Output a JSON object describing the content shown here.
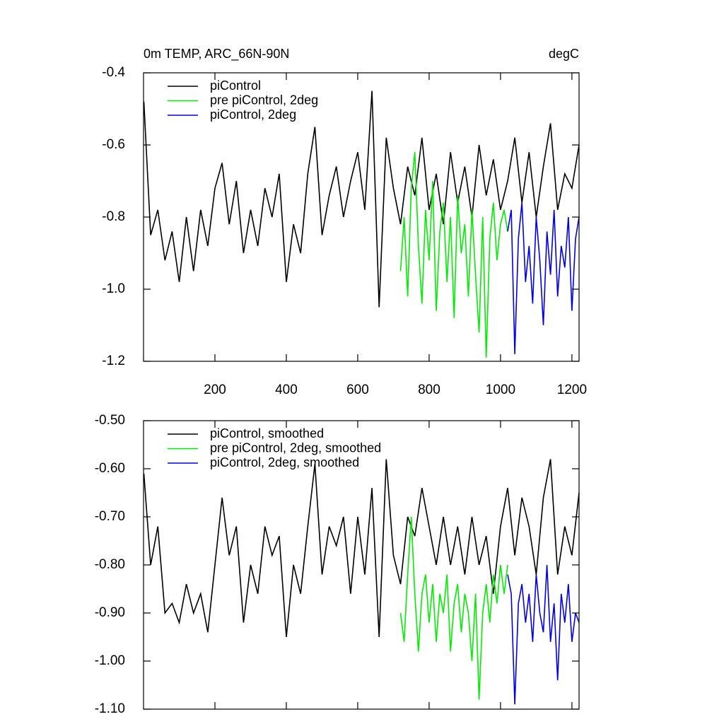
{
  "chart_data": [
    {
      "type": "line",
      "title": "0m TEMP, ARC_66N-90N",
      "subtitle": "degC",
      "xlim": [
        0,
        1220
      ],
      "xticks": [
        200,
        400,
        600,
        800,
        1000,
        1200
      ],
      "xtick_labels": true,
      "ylim": [
        -1.2,
        -0.4
      ],
      "yticks": [
        -0.4,
        -0.6,
        -0.8,
        {
          "value": -1.0,
          "label": "-1.0"
        },
        -1.2
      ],
      "legend": "upper left",
      "series": [
        {
          "name": "piControl",
          "color": "#000000",
          "x": [
            1,
            20,
            40,
            60,
            80,
            100,
            120,
            140,
            160,
            180,
            200,
            220,
            240,
            260,
            280,
            300,
            320,
            340,
            360,
            380,
            400,
            420,
            440,
            460,
            480,
            500,
            520,
            540,
            560,
            580,
            600,
            620,
            640,
            660,
            680,
            700,
            720,
            740,
            760,
            780,
            800,
            820,
            840,
            860,
            880,
            900,
            920,
            940,
            960,
            980,
            1000,
            1020,
            1040,
            1060,
            1080,
            1100,
            1120,
            1140,
            1160,
            1180,
            1200,
            1220
          ],
          "values": [
            -0.48,
            -0.85,
            -0.78,
            -0.92,
            -0.84,
            -0.98,
            -0.8,
            -0.95,
            -0.78,
            -0.88,
            -0.72,
            -0.65,
            -0.82,
            -0.7,
            -0.9,
            -0.78,
            -0.88,
            -0.72,
            -0.8,
            -0.68,
            -0.98,
            -0.82,
            -0.9,
            -0.68,
            -0.55,
            -0.85,
            -0.74,
            -0.66,
            -0.8,
            -0.7,
            -0.62,
            -0.78,
            -0.45,
            -1.05,
            -0.58,
            -0.72,
            -0.82,
            -0.66,
            -0.74,
            -0.58,
            -0.78,
            -0.68,
            -0.82,
            -0.62,
            -0.76,
            -0.66,
            -0.8,
            -0.6,
            -0.74,
            -0.64,
            -0.78,
            -0.7,
            -0.58,
            -0.76,
            -0.62,
            -0.8,
            -0.66,
            -0.54,
            -0.78,
            -0.68,
            -0.72,
            -0.6
          ]
        },
        {
          "name": "pre piControl, 2deg",
          "color": "#00ee00",
          "x": [
            720,
            730,
            740,
            750,
            760,
            770,
            780,
            790,
            800,
            810,
            820,
            830,
            840,
            850,
            860,
            870,
            880,
            890,
            900,
            910,
            920,
            930,
            940,
            950,
            960,
            970,
            980,
            990,
            1000,
            1010,
            1020
          ],
          "values": [
            -0.95,
            -0.8,
            -1.02,
            -0.72,
            -0.62,
            -0.88,
            -1.04,
            -0.78,
            -0.92,
            -0.7,
            -1.06,
            -0.84,
            -0.76,
            -0.98,
            -0.8,
            -1.08,
            -0.74,
            -0.9,
            -0.82,
            -1.02,
            -0.78,
            -0.96,
            -1.12,
            -0.8,
            -1.19,
            -0.86,
            -0.76,
            -0.92,
            -0.82,
            -0.78,
            -0.84
          ]
        },
        {
          "name": "piControl, 2deg",
          "color": "#0000ee",
          "x": [
            1020,
            1030,
            1040,
            1050,
            1060,
            1070,
            1080,
            1090,
            1100,
            1110,
            1120,
            1130,
            1140,
            1150,
            1160,
            1170,
            1180,
            1190,
            1200,
            1210,
            1220
          ],
          "values": [
            -0.84,
            -0.78,
            -1.18,
            -0.86,
            -0.76,
            -0.98,
            -0.88,
            -1.04,
            -0.8,
            -0.92,
            -1.1,
            -0.84,
            -0.96,
            -0.78,
            -1.02,
            -0.88,
            -0.94,
            -0.8,
            -1.06,
            -0.86,
            -0.8
          ]
        }
      ]
    },
    {
      "type": "line",
      "xlim": [
        0,
        1220
      ],
      "xticks": [
        200,
        400,
        600,
        800,
        1000,
        1200
      ],
      "xtick_labels": false,
      "ylim": [
        -1.1,
        -0.5
      ],
      "yticks": [
        {
          "value": -0.5,
          "label": "-0.50"
        },
        {
          "value": -0.6,
          "label": "-0.60"
        },
        {
          "value": -0.7,
          "label": "-0.70"
        },
        {
          "value": -0.8,
          "label": "-0.80"
        },
        {
          "value": -0.9,
          "label": "-0.90"
        },
        {
          "value": -1.0,
          "label": "-1.00"
        },
        {
          "value": -1.1,
          "label": "-1.10"
        }
      ],
      "legend": "upper left",
      "series": [
        {
          "name": "piControl, smoothed",
          "color": "#000000",
          "x": [
            1,
            20,
            40,
            60,
            80,
            100,
            120,
            140,
            160,
            180,
            200,
            220,
            240,
            260,
            280,
            300,
            320,
            340,
            360,
            380,
            400,
            420,
            440,
            460,
            480,
            500,
            520,
            540,
            560,
            580,
            600,
            620,
            640,
            660,
            680,
            700,
            720,
            740,
            760,
            780,
            800,
            820,
            840,
            860,
            880,
            900,
            920,
            940,
            960,
            980,
            1000,
            1020,
            1040,
            1060,
            1080,
            1100,
            1120,
            1140,
            1160,
            1180,
            1200,
            1220
          ],
          "values": [
            -0.61,
            -0.8,
            -0.72,
            -0.9,
            -0.88,
            -0.92,
            -0.84,
            -0.9,
            -0.86,
            -0.94,
            -0.8,
            -0.66,
            -0.78,
            -0.72,
            -0.92,
            -0.8,
            -0.86,
            -0.72,
            -0.78,
            -0.74,
            -0.95,
            -0.8,
            -0.86,
            -0.72,
            -0.59,
            -0.82,
            -0.72,
            -0.76,
            -0.7,
            -0.86,
            -0.7,
            -0.82,
            -0.64,
            -0.95,
            -0.58,
            -0.78,
            -0.84,
            -0.7,
            -0.74,
            -0.64,
            -0.72,
            -0.8,
            -0.7,
            -0.8,
            -0.72,
            -0.82,
            -0.7,
            -0.8,
            -0.74,
            -0.86,
            -0.72,
            -0.64,
            -0.78,
            -0.66,
            -0.72,
            -0.82,
            -0.66,
            -0.58,
            -0.82,
            -0.72,
            -0.78,
            -0.65
          ]
        },
        {
          "name": "pre piControl, 2deg, smoothed",
          "color": "#00ee00",
          "x": [
            720,
            730,
            740,
            750,
            760,
            770,
            780,
            790,
            800,
            810,
            820,
            830,
            840,
            850,
            860,
            870,
            880,
            890,
            900,
            910,
            920,
            930,
            940,
            950,
            960,
            970,
            980,
            990,
            1000,
            1010,
            1020
          ],
          "values": [
            -0.9,
            -0.96,
            -0.82,
            -0.7,
            -0.86,
            -0.98,
            -0.86,
            -0.82,
            -0.92,
            -0.84,
            -0.96,
            -0.86,
            -0.9,
            -0.82,
            -0.98,
            -0.88,
            -0.84,
            -0.94,
            -0.86,
            -0.9,
            -1.0,
            -0.86,
            -1.08,
            -0.9,
            -0.84,
            -0.92,
            -0.82,
            -0.88,
            -0.8,
            -0.86,
            -0.8
          ]
        },
        {
          "name": "piControl, 2deg, smoothed",
          "color": "#0000ee",
          "x": [
            1020,
            1030,
            1040,
            1050,
            1060,
            1070,
            1080,
            1090,
            1100,
            1110,
            1120,
            1130,
            1140,
            1150,
            1160,
            1170,
            1180,
            1190,
            1200,
            1210,
            1220
          ],
          "values": [
            -0.82,
            -0.86,
            -1.09,
            -0.88,
            -0.84,
            -0.92,
            -0.86,
            -0.96,
            -0.82,
            -0.9,
            -0.94,
            -0.8,
            -0.96,
            -0.88,
            -1.04,
            -0.86,
            -0.92,
            -0.84,
            -0.96,
            -0.9,
            -0.92
          ]
        }
      ]
    }
  ]
}
